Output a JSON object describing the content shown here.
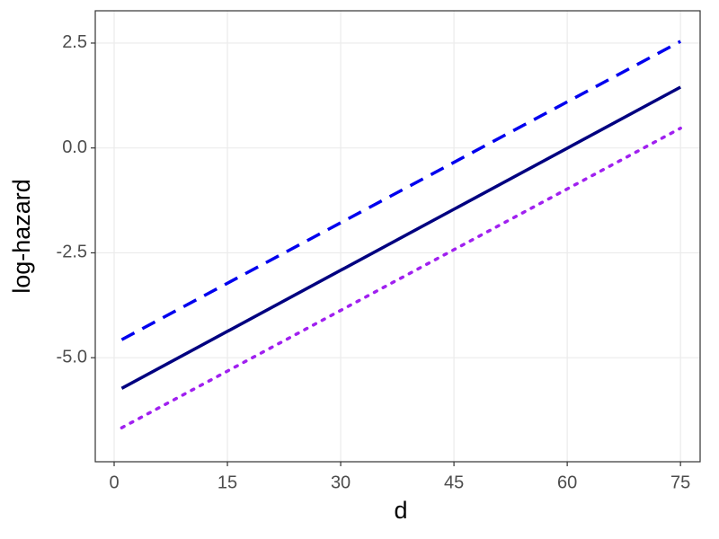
{
  "chart_data": {
    "type": "line",
    "x_label": "d",
    "y_label": "log-hazard",
    "x": [
      1,
      75
    ],
    "series": [
      {
        "color": "#0000ee",
        "dash": "dashed",
        "values": [
          -4.57,
          2.54
        ]
      },
      {
        "color": "#000080",
        "dash": "solid",
        "values": [
          -5.73,
          1.45
        ]
      },
      {
        "color": "#a020f0",
        "dash": "dotted",
        "values": [
          -6.67,
          0.47
        ]
      }
    ],
    "xlim": [
      -2.5,
      77.6
    ],
    "ylim": [
      -7.48,
      3.27
    ],
    "xticks": [
      0,
      15,
      30,
      45,
      60,
      75
    ],
    "yticks": [
      2.5,
      {
        "value": 0,
        "label": "0.0"
      },
      -2.5,
      {
        "value": -5,
        "label": "-5.0"
      }
    ],
    "grid": true
  }
}
